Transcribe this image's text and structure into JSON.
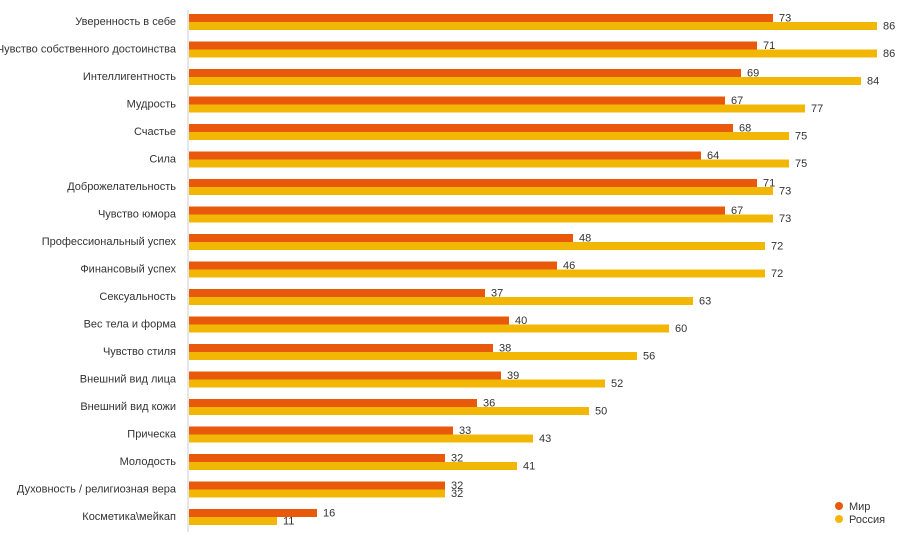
{
  "chart_data": {
    "type": "bar",
    "orientation": "horizontal",
    "categories": [
      "Уверенность в себе",
      "Чувство собственного достоинства",
      "Интеллигентность",
      "Мудрость",
      "Счастье",
      "Сила",
      "Доброжелательность",
      "Чувство юмора",
      "Профессиональный успех",
      "Финансовый успех",
      "Сексуальность",
      "Вес тела и форма",
      "Чувство стиля",
      "Внешний вид лица",
      "Внешний вид кожи",
      "Прическа",
      "Молодость",
      "Духовность / религиозная вера",
      "Косметика\\мейкап"
    ],
    "series": [
      {
        "name": "Мир",
        "color": "#e8590c",
        "values": [
          73,
          71,
          69,
          67,
          68,
          64,
          71,
          67,
          48,
          46,
          37,
          40,
          38,
          39,
          36,
          33,
          32,
          32,
          16
        ]
      },
      {
        "name": "Россия",
        "color": "#f2b705",
        "values": [
          86,
          86,
          84,
          77,
          75,
          75,
          73,
          73,
          72,
          72,
          63,
          60,
          56,
          52,
          50,
          43,
          41,
          32,
          11
        ]
      }
    ],
    "xlim": [
      0,
      100
    ],
    "grid": false,
    "legend_position": "bottom-right",
    "data_labels": true
  }
}
